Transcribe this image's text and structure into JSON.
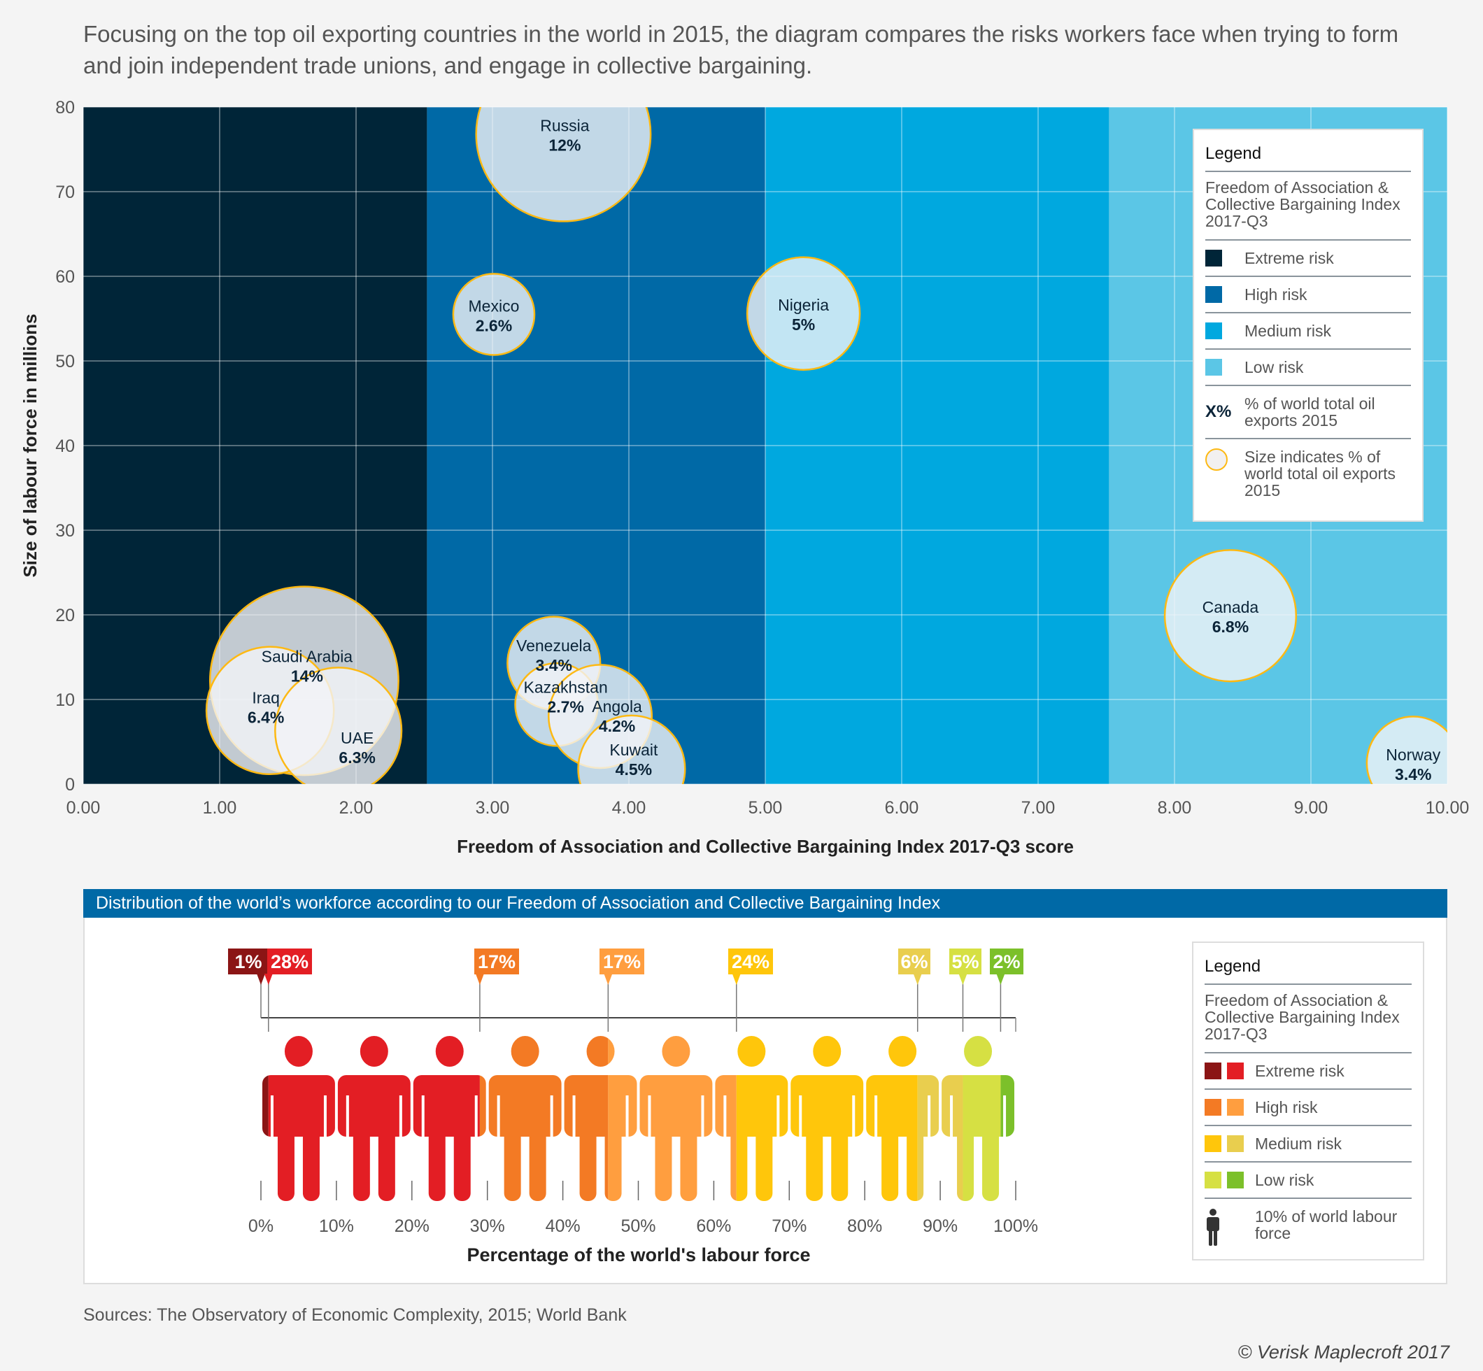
{
  "intro": "Focusing on the top oil exporting countries in the world in 2015, the diagram compares the risks workers face when trying to form and join independent trade unions, and engage in collective bargaining.",
  "chart_data": [
    {
      "type": "scatter",
      "subtype": "bubble",
      "xlabel": "Freedom of Association and Collective Bargaining Index 2017-Q3  score",
      "ylabel": "Size of labour force in millions",
      "xlim": [
        0,
        10
      ],
      "ylim": [
        0,
        80
      ],
      "x_ticks": [
        "0.00",
        "1.00",
        "2.00",
        "3.00",
        "4.00",
        "5.00",
        "6.00",
        "7.00",
        "8.00",
        "9.00",
        "10.00"
      ],
      "y_ticks": [
        "0",
        "10",
        "20",
        "30",
        "40",
        "50",
        "60",
        "70",
        "80"
      ],
      "grid": true,
      "legend_position": "top-right",
      "bands": [
        {
          "label": "Extreme risk",
          "from": 0,
          "to": 2.52,
          "color": "#002538"
        },
        {
          "label": "High risk",
          "from": 2.52,
          "to": 5.0,
          "color": "#0069A6"
        },
        {
          "label": "Medium risk",
          "from": 5.0,
          "to": 7.52,
          "color": "#00A8DF"
        },
        {
          "label": "Low risk",
          "from": 7.52,
          "to": 10,
          "color": "#5BC6E6"
        }
      ],
      "points": [
        {
          "country": "Russia",
          "x": 3.52,
          "y": 76.8,
          "export_share": 12,
          "label": "12%"
        },
        {
          "country": "Mexico",
          "x": 3.01,
          "y": 55.5,
          "export_share": 2.6,
          "label": "2.6%"
        },
        {
          "country": "Nigeria",
          "x": 5.28,
          "y": 55.6,
          "export_share": 5,
          "label": "5%"
        },
        {
          "country": "Saudi Arabia",
          "x": 1.62,
          "y": 12.2,
          "export_share": 14,
          "label": "14%"
        },
        {
          "country": "Iraq",
          "x": 1.37,
          "y": 8.7,
          "export_share": 6.4,
          "label": "6.4%"
        },
        {
          "country": "UAE",
          "x": 1.87,
          "y": 6.3,
          "export_share": 6.3,
          "label": "6.3%"
        },
        {
          "country": "Venezuela",
          "x": 3.45,
          "y": 14.3,
          "export_share": 3.4,
          "label": "3.4%"
        },
        {
          "country": "Kazakhstan",
          "x": 3.47,
          "y": 9.4,
          "export_share": 2.7,
          "label": "2.7%"
        },
        {
          "country": "Angola",
          "x": 3.79,
          "y": 8.0,
          "export_share": 4.2,
          "label": "4.2%"
        },
        {
          "country": "Kuwait",
          "x": 4.02,
          "y": 1.8,
          "export_share": 4.5,
          "label": "4.5%"
        },
        {
          "country": "Canada",
          "x": 8.41,
          "y": 19.9,
          "export_share": 6.8,
          "label": "6.8%"
        },
        {
          "country": "Norway",
          "x": 9.75,
          "y": 2.5,
          "export_share": 3.4,
          "label": "3.4%"
        }
      ],
      "bubble_fill": "#f2f2f2",
      "bubble_stroke": "#FDB913"
    },
    {
      "type": "bar",
      "subtype": "stacked-pictogram",
      "title": "Distribution of the world’s workforce according to our Freedom of Association and Collective Bargaining Index",
      "xlabel": "Percentage of the world's labour force",
      "x_ticks": [
        "0%",
        "10%",
        "20%",
        "30%",
        "40%",
        "50%",
        "60%",
        "70%",
        "80%",
        "90%",
        "100%"
      ],
      "xlim": [
        0,
        100
      ],
      "segments": [
        {
          "risk": "Extreme risk",
          "value": 1,
          "label": "1%",
          "color": "#8B1515"
        },
        {
          "risk": "Extreme risk",
          "value": 28,
          "label": "28%",
          "color": "#E31E24"
        },
        {
          "risk": "High risk",
          "value": 17,
          "label": "17%",
          "color": "#F37A24"
        },
        {
          "risk": "High risk",
          "value": 17,
          "label": "17%",
          "color": "#FF9E3F"
        },
        {
          "risk": "Medium risk",
          "value": 24,
          "label": "24%",
          "color": "#FFC60B"
        },
        {
          "risk": "Medium risk",
          "value": 6,
          "label": "6%",
          "color": "#E9CE4E"
        },
        {
          "risk": "Low risk",
          "value": 5,
          "label": "5%",
          "color": "#D6E043"
        },
        {
          "risk": "Low risk",
          "value": 2,
          "label": "2%",
          "color": "#7CC02A"
        }
      ]
    }
  ],
  "legend_top": {
    "title": "Legend",
    "subtitle": "Freedom of Association & Collective Bargaining Index 2017-Q3",
    "items": [
      {
        "label": "Extreme risk",
        "color": "#002538"
      },
      {
        "label": "High risk",
        "color": "#0069A6"
      },
      {
        "label": "Medium risk",
        "color": "#00A8DF"
      },
      {
        "label": "Low risk",
        "color": "#5BC6E6"
      }
    ],
    "pct_symbol": "X%",
    "pct_label": "% of world total oil exports 2015",
    "size_label": "Size indicates % of world total oil exports 2015"
  },
  "legend_bottom": {
    "title": "Legend",
    "subtitle": "Freedom of Association & Collective Bargaining Index 2017-Q3",
    "items": [
      {
        "label": "Extreme risk",
        "colors": [
          "#8B1515",
          "#E31E24"
        ]
      },
      {
        "label": "High risk",
        "colors": [
          "#F37A24",
          "#FF9E3F"
        ]
      },
      {
        "label": "Medium risk",
        "colors": [
          "#FFC60B",
          "#E9CE4E"
        ]
      },
      {
        "label": "Low risk",
        "colors": [
          "#D6E043",
          "#7CC02A"
        ]
      }
    ],
    "person_label": "10% of world labour force"
  },
  "sources": "Sources: The Observatory of Economic Complexity, 2015; World Bank",
  "copyright": "© Verisk Maplecroft 2017"
}
